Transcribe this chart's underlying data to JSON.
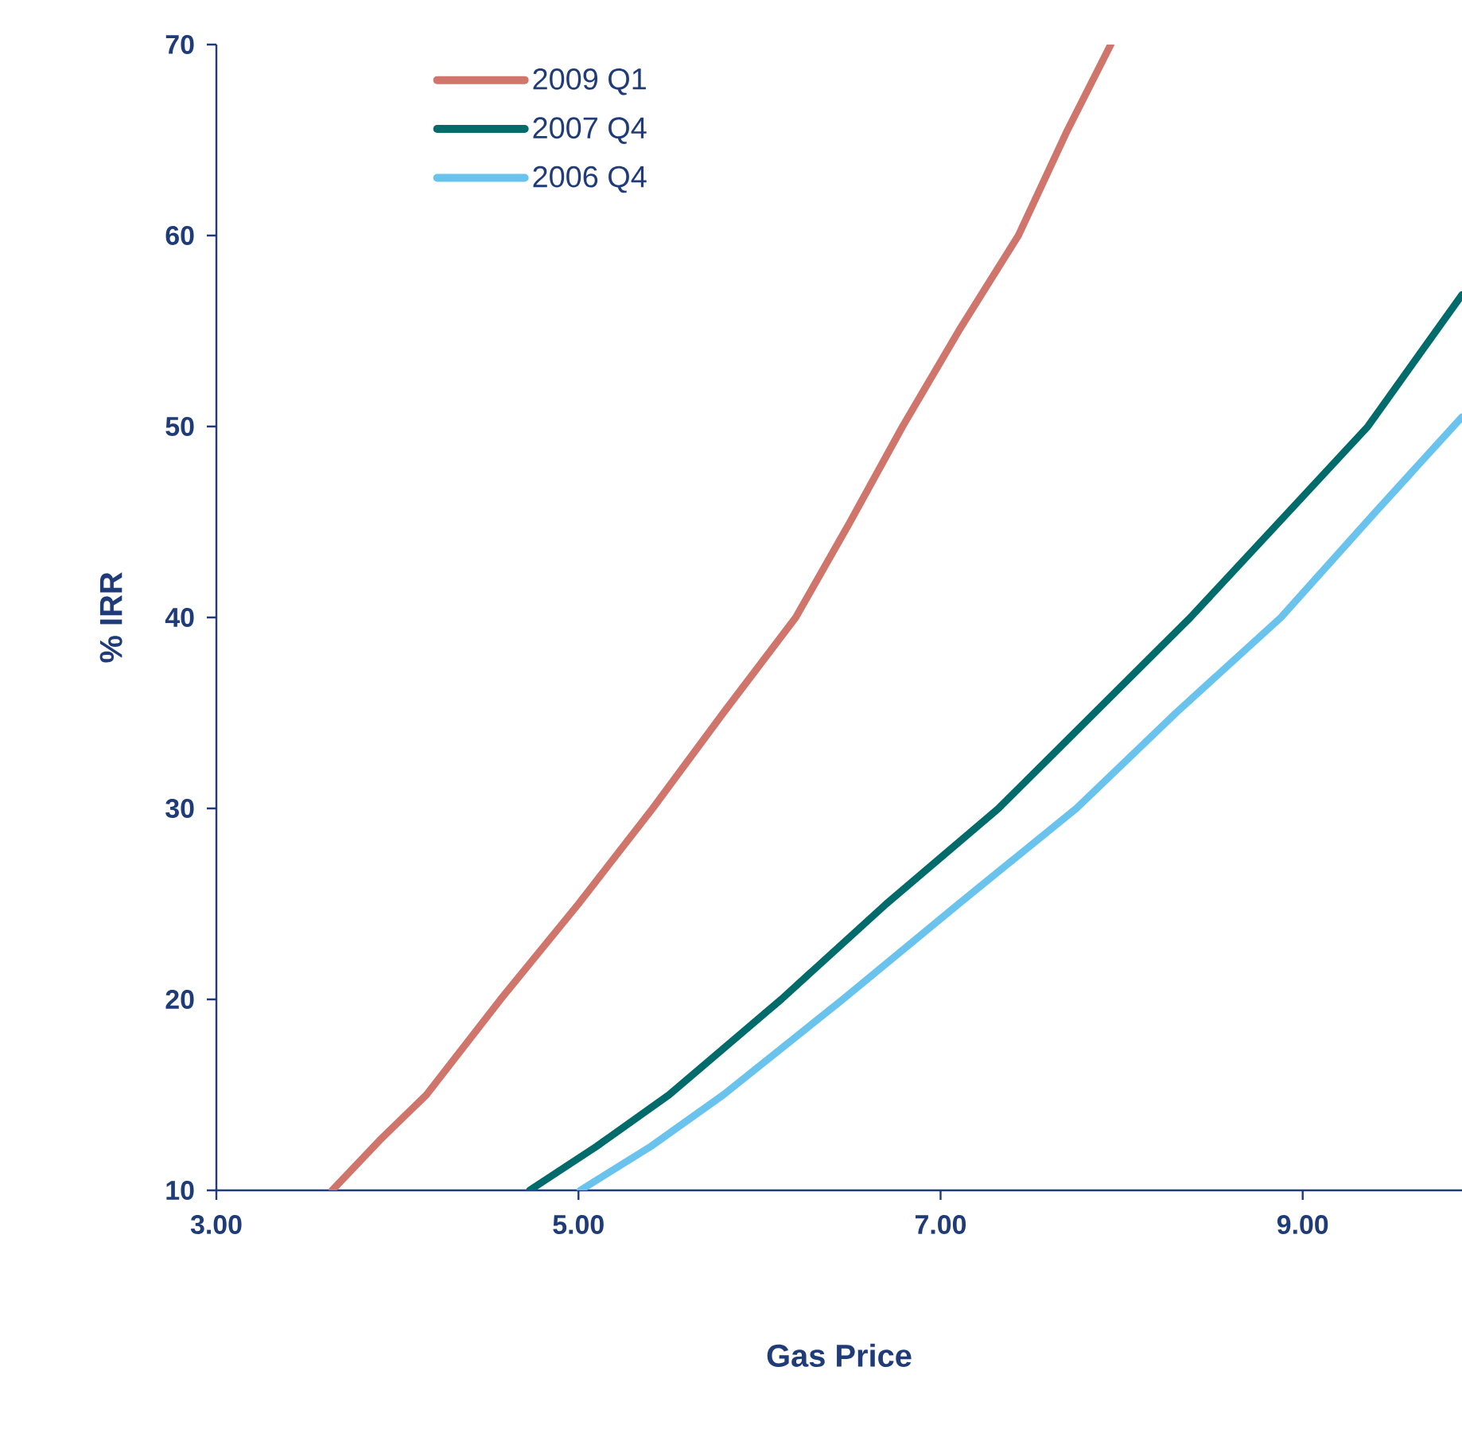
{
  "chart_data": {
    "type": "line",
    "xlabel": "Gas Price",
    "ylabel": "% IRR",
    "xlim": [
      3,
      9.88
    ],
    "ylim": [
      10,
      70
    ],
    "xticks": [
      {
        "value": 3,
        "label": "3.00"
      },
      {
        "value": 5,
        "label": "5.00"
      },
      {
        "value": 7,
        "label": "7.00"
      },
      {
        "value": 9,
        "label": "9.00"
      }
    ],
    "yticks": [
      10,
      20,
      30,
      40,
      50,
      60,
      70
    ],
    "grid": false,
    "legend": "top left",
    "marker": "none",
    "line_style": "solid",
    "series": [
      {
        "name": "2009 Q1",
        "color": "#d0756b",
        "x": [
          3.64,
          3.9,
          4.16,
          4.57,
          5.0,
          5.41,
          5.8,
          6.2,
          6.5,
          6.79,
          7.1,
          7.43,
          7.7,
          7.94
        ],
        "values": [
          10,
          12.6,
          15,
          20,
          25,
          30,
          35,
          40,
          45,
          50,
          55,
          60,
          65.5,
          70
        ]
      },
      {
        "name": "2007 Q4",
        "color": "#006b6b",
        "x": [
          4.73,
          5.1,
          5.5,
          6.12,
          6.7,
          7.32,
          7.85,
          8.38,
          8.9,
          9.36,
          9.88
        ],
        "values": [
          10,
          12.3,
          15,
          20,
          25,
          30,
          35,
          40,
          45.3,
          50,
          56.9
        ]
      },
      {
        "name": "2006 Q4",
        "color": "#69c3ec",
        "x": [
          5.01,
          5.4,
          5.8,
          6.46,
          7.1,
          7.75,
          8.3,
          8.88,
          9.4,
          9.88
        ],
        "values": [
          10,
          12.3,
          15,
          20,
          25,
          30,
          35,
          40,
          45.5,
          50.5
        ]
      }
    ]
  }
}
